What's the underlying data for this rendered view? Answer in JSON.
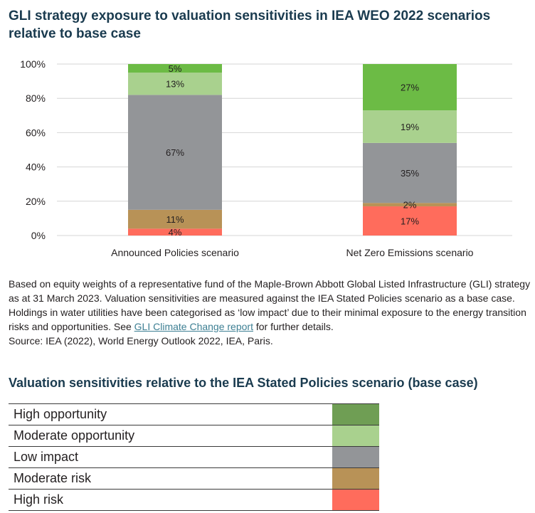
{
  "title": "GLI strategy exposure to valuation sensitivities in IEA WEO 2022 scenarios relative to base case",
  "note": {
    "text_before": "Based on equity weights of a representative fund of the Maple-Brown Abbott Global Listed Infrastructure (GLI) strategy as at 31 March 2023. Valuation sensitivities are measured against the IEA Stated Policies scenario as a base case. Holdings in water utilities have been categorised as ‘low impact’ due to their minimal exposure to the energy transition risks and opportunities. See ",
    "link": "GLI Climate Change report",
    "text_after": " for further details.",
    "source": "Source: IEA (2022), World Energy Outlook 2022, IEA, Paris."
  },
  "legend": {
    "title": "Valuation sensitivities relative to the IEA Stated Policies scenario (base case)",
    "items": [
      {
        "label": "High opportunity",
        "color": "#6f9e54"
      },
      {
        "label": "Moderate opportunity",
        "color": "#a9d18e"
      },
      {
        "label": "Low impact",
        "color": "#939598"
      },
      {
        "label": "Moderate risk",
        "color": "#b89257"
      },
      {
        "label": "High risk",
        "color": "#ff6c5c"
      }
    ]
  },
  "chart_data": {
    "type": "bar",
    "stacked": true,
    "categories": [
      "Announced Policies scenario",
      "Net Zero Emissions scenario"
    ],
    "ylim": [
      0,
      100
    ],
    "yticks": [
      0,
      20,
      40,
      60,
      80,
      100
    ],
    "ytick_labels": [
      "0%",
      "20%",
      "40%",
      "60%",
      "80%",
      "100%"
    ],
    "grid": true,
    "series": [
      {
        "color": "#ff6c5c",
        "values": [
          4,
          17
        ],
        "labels": [
          "4%",
          "17%"
        ]
      },
      {
        "color": "#b89257",
        "values": [
          11,
          2
        ],
        "labels": [
          "11%",
          "2%"
        ]
      },
      {
        "color": "#939598",
        "values": [
          67,
          35
        ],
        "labels": [
          "67%",
          "35%"
        ]
      },
      {
        "color": "#a9d18e",
        "values": [
          13,
          19
        ],
        "labels": [
          "13%",
          "19%"
        ]
      },
      {
        "color": "#6cbb45",
        "values": [
          5,
          27
        ],
        "labels": [
          "5%",
          "27%"
        ]
      }
    ]
  }
}
